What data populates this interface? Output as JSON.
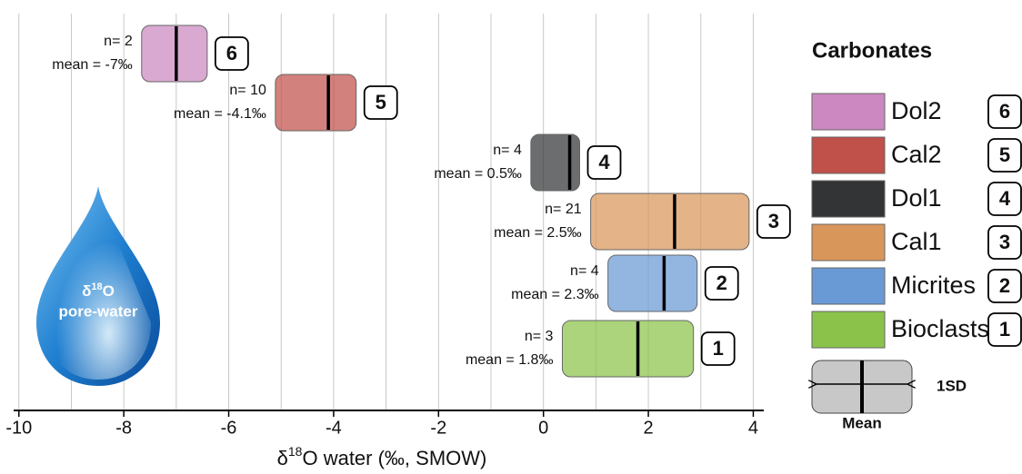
{
  "chart_data": {
    "type": "floatingbar",
    "title": "Carbonates",
    "x_label": {
      "prefix": "δ",
      "sup": "18",
      "rest": "O water (‰, SMOW)"
    },
    "drop_label": {
      "prefix": "δ",
      "sup": "18",
      "rest": "O",
      "line2": "pore-water"
    },
    "key": {
      "spread": "1SD",
      "center": "Mean"
    },
    "xlim": [
      -10.1,
      4.2
    ],
    "xticks": [
      -10,
      -8,
      -6,
      -4,
      -2,
      0,
      2,
      4
    ],
    "xgrid": [
      -10,
      -9,
      -8,
      -7,
      -6,
      -5,
      -4,
      -3,
      -2,
      -1,
      0,
      1,
      2,
      3,
      4
    ],
    "series": [
      {
        "name": "Dol2",
        "badge": "6",
        "color": "#cc88c0",
        "low": -7.66,
        "high": -6.41,
        "mean": -7,
        "n_label": "n= 2",
        "mean_label": "mean = -7‰"
      },
      {
        "name": "Cal2",
        "badge": "5",
        "color": "#c0504a",
        "low": -5.11,
        "high": -3.57,
        "mean": -4.1,
        "n_label": "n= 10",
        "mean_label": "mean = -4.1‰"
      },
      {
        "name": "Dol1",
        "badge": "4",
        "color": "#333436",
        "low": -0.24,
        "high": 0.69,
        "mean": 0.5,
        "n_label": "n= 4",
        "mean_label": "mean = 0.5‰"
      },
      {
        "name": "Cal1",
        "badge": "3",
        "color": "#d9965a",
        "low": 0.9,
        "high": 3.92,
        "mean": 2.5,
        "n_label": "n= 21",
        "mean_label": "mean = 2.5‰"
      },
      {
        "name": "Micrites",
        "badge": "2",
        "color": "#6a9ad6",
        "low": 1.23,
        "high": 2.93,
        "mean": 2.3,
        "n_label": "n= 4",
        "mean_label": "mean = 2.3‰"
      },
      {
        "name": "Bioclasts",
        "badge": "1",
        "color": "#8bc34a",
        "low": 0.36,
        "high": 2.86,
        "mean": 1.8,
        "n_label": "n= 3",
        "mean_label": "mean = 1.8‰"
      }
    ]
  }
}
